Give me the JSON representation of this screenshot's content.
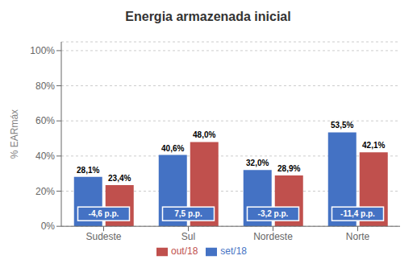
{
  "chart_data": {
    "type": "bar",
    "title": "Energia armazenada inicial",
    "categories": [
      "Sudeste",
      "Sul",
      "Nordeste",
      "Norte"
    ],
    "series": [
      {
        "name": "set/18",
        "color": "#4472C4",
        "values": [
          28.1,
          40.6,
          32.0,
          53.5
        ],
        "value_labels": [
          "28,1%",
          "40,6%",
          "32,0%",
          "53,5%"
        ]
      },
      {
        "name": "out/18",
        "color": "#C0504D",
        "values": [
          23.4,
          48.0,
          28.9,
          42.1
        ],
        "value_labels": [
          "23,4%",
          "48,0%",
          "28,9%",
          "42,1%"
        ]
      }
    ],
    "annotations": [
      {
        "text": "-4,6 p.p.",
        "x": "Sudeste",
        "color": "#4472C4"
      },
      {
        "text": "7,5 p.p.",
        "x": "Sul",
        "color": "#4472C4"
      },
      {
        "text": "-3,2 p.p.",
        "x": "Nordeste",
        "color": "#4472C4"
      },
      {
        "text": "-11,4 p.p.",
        "x": "Norte",
        "color": "#4472C4"
      }
    ],
    "ylabel": "% EARmáx",
    "ylim": [
      0,
      105
    ],
    "yticks": [
      {
        "value": 0,
        "label": "0%"
      },
      {
        "value": 20,
        "label": "20%"
      },
      {
        "value": 40,
        "label": "40%"
      },
      {
        "value": 60,
        "label": "60%"
      },
      {
        "value": 80,
        "label": "80%"
      },
      {
        "value": 100,
        "label": "100%"
      }
    ],
    "grid": true,
    "legend": "bottom",
    "data_labels": true
  }
}
